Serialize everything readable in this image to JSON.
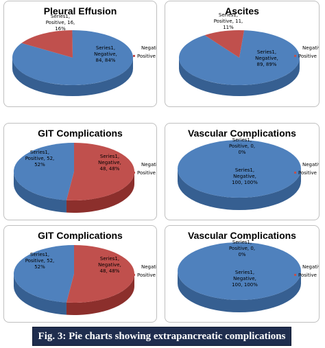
{
  "colors": {
    "negative": "#4f81bd",
    "negative_side": "#365f91",
    "positive": "#c0504d",
    "positive_side": "#8c2f2c",
    "caption_bg": "#1f2d4e"
  },
  "chart_data": [
    {
      "type": "pie",
      "title": "Pleural Effusion",
      "categories": [
        "Negative",
        "Positive"
      ],
      "values": [
        84,
        16
      ],
      "percents": [
        "84%",
        "16%"
      ],
      "series_name": "Series1",
      "legend": [
        "Negative",
        "Positive"
      ],
      "legend_position": "right",
      "data_labels": [
        "Series1,\nNegative,\n84, 84%",
        "Series1,\nPositive, 16,\n16%"
      ]
    },
    {
      "type": "pie",
      "title": "Ascites",
      "categories": [
        "Negative",
        "Positive"
      ],
      "values": [
        89,
        11
      ],
      "percents": [
        "89%",
        "11%"
      ],
      "series_name": "Series1",
      "legend": [
        "Negative",
        "Positive"
      ],
      "legend_position": "right",
      "data_labels": [
        "Series1,\nNegative,\n89, 89%",
        "Series1,\nPositive, 11,\n11%"
      ]
    },
    {
      "type": "pie",
      "title": "GIT Complications",
      "categories": [
        "Negative",
        "Positive"
      ],
      "values": [
        48,
        52
      ],
      "percents": [
        "48%",
        "52%"
      ],
      "series_name": "Series1",
      "legend": [
        "Negative",
        "Positive"
      ],
      "legend_position": "right",
      "data_labels": [
        "Series1,\nNegative,\n48, 48%",
        "Series1,\nPositive, 52,\n52%"
      ]
    },
    {
      "type": "pie",
      "title": "Vascular Complications",
      "categories": [
        "Negative",
        "Positive"
      ],
      "values": [
        100,
        0
      ],
      "percents": [
        "100%",
        "0%"
      ],
      "series_name": "Series1",
      "legend": [
        "Negative",
        "Positive"
      ],
      "legend_position": "right",
      "data_labels": [
        "Series1,\nNegative,\n100, 100%",
        "Series1,\nPositive, 0,\n0%"
      ]
    },
    {
      "type": "pie",
      "title": "GIT Complications",
      "categories": [
        "Negative",
        "Positive"
      ],
      "values": [
        48,
        52
      ],
      "percents": [
        "48%",
        "52%"
      ],
      "series_name": "Series1",
      "legend": [
        "Negative",
        "Positive"
      ],
      "legend_position": "right",
      "data_labels": [
        "Series1,\nNegative,\n48, 48%",
        "Series1,\nPositive, 52,\n52%"
      ]
    },
    {
      "type": "pie",
      "title": "Vascular Complications",
      "categories": [
        "Negative",
        "Positive"
      ],
      "values": [
        100,
        0
      ],
      "percents": [
        "100%",
        "0%"
      ],
      "series_name": "Series1",
      "legend": [
        "Negative",
        "Positive"
      ],
      "legend_position": "right",
      "data_labels": [
        "Series1,\nNegative,\n100, 100%",
        "Series1,\nPositive, 0,\n0%"
      ]
    }
  ],
  "caption": "Fig. 3: Pie charts showing extrapancreatic complications"
}
